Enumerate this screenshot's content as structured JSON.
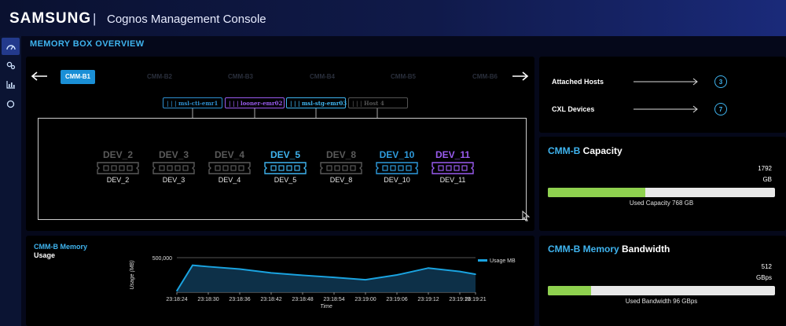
{
  "header": {
    "brand": "SAMSUNG",
    "separator": "|",
    "title": "Cognos Management Console"
  },
  "sidebar": {
    "items": [
      {
        "icon": "dashboard-icon",
        "active": true
      },
      {
        "icon": "settings-icon",
        "active": false
      },
      {
        "icon": "bar-chart-icon",
        "active": false
      },
      {
        "icon": "circle-icon",
        "active": false
      }
    ]
  },
  "page": {
    "title": "MEMORY BOX OVERVIEW"
  },
  "box_tabs": {
    "items": [
      "CMM-B1",
      "CMM-B2",
      "CMM-B3",
      "CMM-B4",
      "CMM-B5",
      "CMM-B6"
    ],
    "active": "CMM-B1"
  },
  "hosts": [
    {
      "label": "| | |   msl-cti-emr1",
      "color": "#2e8fd0"
    },
    {
      "label": "| | |   looner-emr02",
      "color": "#9a5cf0"
    },
    {
      "label": "| | |   msl-stg-emr03",
      "color": "#3fb4ef"
    },
    {
      "label": "| | |   Host 4",
      "color": "#555555"
    }
  ],
  "devices": [
    {
      "title": "DEV_2",
      "label": "DEV_2",
      "color": "#5a5a5a"
    },
    {
      "title": "DEV_3",
      "label": "DEV_3",
      "color": "#5a5a5a"
    },
    {
      "title": "DEV_4",
      "label": "DEV_4",
      "color": "#5a5a5a"
    },
    {
      "title": "DEV_5",
      "label": "DEV_5",
      "color": "#3fb4ef"
    },
    {
      "title": "DEV_8",
      "label": "DEV_8",
      "color": "#5a5a5a"
    },
    {
      "title": "DEV_10",
      "label": "DEV_10",
      "color": "#2e9bdc"
    },
    {
      "title": "DEV_11",
      "label": "DEV_11",
      "color": "#9a5cf0"
    }
  ],
  "summary": {
    "attached_hosts_label": "Attached Hosts",
    "attached_hosts_count": "3",
    "cxl_devices_label": "CXL Devices",
    "cxl_devices_count": "7"
  },
  "capacity": {
    "title_accent": "CMM-B",
    "title_rest": "Capacity",
    "total_value": "1792",
    "total_unit": "GB",
    "used_fraction": 0.43,
    "caption": "Used Capacity 768 GB"
  },
  "bandwidth": {
    "title_accent": "CMM-B Memory",
    "title_rest": "Bandwidth",
    "total_value": "512",
    "total_unit": "GBps",
    "used_fraction": 0.19,
    "caption": "Used Bandwidth 96 GBps"
  },
  "memory_chart": {
    "title": "CMM-B Memory",
    "subtitle": "Usage"
  },
  "colors": {
    "accent": "#3fb4ef",
    "bar_fill": "#8fd14f",
    "line": "#1aa3e0"
  },
  "chart_data": {
    "type": "area",
    "title": "CMM-B Memory Usage",
    "xlabel": "Time",
    "ylabel": "Usage (MB)",
    "legend": "top-right",
    "ylim": [
      0,
      500000
    ],
    "yticks": [
      "500,000"
    ],
    "series": [
      {
        "name": "Usage MB"
      }
    ],
    "x": [
      "23:18:24",
      "23:18:27",
      "23:18:30",
      "23:18:36",
      "23:18:42",
      "23:18:48",
      "23:18:54",
      "23:19:00",
      "23:19:06",
      "23:19:12",
      "23:19:18",
      "23:19:21"
    ],
    "xticks": [
      "23:18:24",
      "23:18:30",
      "23:18:36",
      "23:18:42",
      "23:18:48",
      "23:18:54",
      "23:19:00",
      "23:19:06",
      "23:19:12",
      "23:19:18",
      "23:19:21"
    ],
    "values": [
      20000,
      390000,
      370000,
      335000,
      280000,
      245000,
      215000,
      180000,
      250000,
      350000,
      300000,
      260000
    ]
  }
}
